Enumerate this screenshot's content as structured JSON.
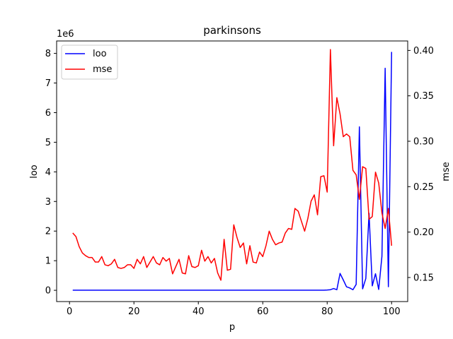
{
  "chart_data": {
    "type": "line",
    "title": "parkinsons",
    "xlabel": "p",
    "ylabel_left": "loo",
    "ylabel_right": "mse",
    "left_axis_offset_label": "1e6",
    "xlim": [
      -4,
      105
    ],
    "ylim_left": [
      -380000,
      8420000
    ],
    "ylim_right": [
      0.1235,
      0.4104
    ],
    "x_ticks": [
      0,
      20,
      40,
      60,
      80,
      100
    ],
    "y_ticks_left": [
      0,
      1,
      2,
      3,
      4,
      5,
      6,
      7,
      8
    ],
    "y_ticks_right": [
      0.15,
      0.2,
      0.25,
      0.3,
      0.35,
      0.4
    ],
    "legend": {
      "position": "top-left",
      "entries": [
        "loo",
        "mse"
      ]
    },
    "series": [
      {
        "name": "loo",
        "axis": "left",
        "color": "#0000ff",
        "x": [
          1,
          2,
          3,
          4,
          5,
          6,
          7,
          8,
          9,
          10,
          11,
          12,
          13,
          14,
          15,
          16,
          17,
          18,
          19,
          20,
          21,
          22,
          23,
          24,
          25,
          26,
          27,
          28,
          29,
          30,
          31,
          32,
          33,
          34,
          35,
          36,
          37,
          38,
          39,
          40,
          41,
          42,
          43,
          44,
          45,
          46,
          47,
          48,
          49,
          50,
          51,
          52,
          53,
          54,
          55,
          56,
          57,
          58,
          59,
          60,
          61,
          62,
          63,
          64,
          65,
          66,
          67,
          68,
          69,
          70,
          71,
          72,
          73,
          74,
          75,
          76,
          77,
          78,
          79,
          80,
          81,
          82,
          83,
          84,
          85,
          86,
          87,
          88,
          89,
          90,
          91,
          92,
          93,
          94,
          95,
          96,
          97,
          98,
          99,
          100
        ],
        "y": [
          5000,
          5000,
          5000,
          5000,
          5000,
          5000,
          5000,
          5000,
          5000,
          5000,
          5000,
          5000,
          5000,
          5000,
          5000,
          5000,
          5000,
          5000,
          5000,
          5000,
          5000,
          5000,
          5000,
          5000,
          5000,
          5000,
          5000,
          5000,
          5000,
          5000,
          5000,
          5000,
          5000,
          5000,
          5000,
          5000,
          5000,
          5000,
          5000,
          5000,
          5000,
          5000,
          5000,
          5000,
          5000,
          5000,
          5000,
          5000,
          5000,
          5000,
          5000,
          5000,
          5000,
          5000,
          5000,
          5000,
          5000,
          5000,
          5000,
          5000,
          5000,
          5000,
          5000,
          5000,
          5000,
          5000,
          5000,
          5000,
          5000,
          5000,
          5000,
          5000,
          5000,
          5000,
          5000,
          5000,
          5000,
          5000,
          5000,
          10000,
          20000,
          60000,
          20000,
          570000,
          350000,
          120000,
          80000,
          20000,
          200000,
          5520000,
          50000,
          400000,
          2600000,
          150000,
          560000,
          30000,
          1150000,
          7500000,
          120000,
          8050000
        ]
      },
      {
        "name": "mse",
        "axis": "right",
        "color": "#ff0000",
        "x": [
          1,
          2,
          3,
          4,
          5,
          6,
          7,
          8,
          9,
          10,
          11,
          12,
          13,
          14,
          15,
          16,
          17,
          18,
          19,
          20,
          21,
          22,
          23,
          24,
          25,
          26,
          27,
          28,
          29,
          30,
          31,
          32,
          33,
          34,
          35,
          36,
          37,
          38,
          39,
          40,
          41,
          42,
          43,
          44,
          45,
          46,
          47,
          48,
          49,
          50,
          51,
          52,
          53,
          54,
          55,
          56,
          57,
          58,
          59,
          60,
          61,
          62,
          63,
          64,
          65,
          66,
          67,
          68,
          69,
          70,
          71,
          72,
          73,
          74,
          75,
          76,
          77,
          78,
          79,
          80,
          81,
          82,
          83,
          84,
          85,
          86,
          87,
          88,
          89,
          90,
          91,
          92,
          93,
          94,
          95,
          96,
          97,
          98,
          99,
          100
        ],
        "y": [
          0.199,
          0.195,
          0.184,
          0.177,
          0.174,
          0.172,
          0.172,
          0.167,
          0.167,
          0.173,
          0.164,
          0.163,
          0.165,
          0.17,
          0.161,
          0.16,
          0.161,
          0.164,
          0.164,
          0.16,
          0.17,
          0.165,
          0.173,
          0.161,
          0.167,
          0.173,
          0.166,
          0.164,
          0.172,
          0.168,
          0.171,
          0.154,
          0.162,
          0.17,
          0.155,
          0.154,
          0.174,
          0.162,
          0.161,
          0.163,
          0.18,
          0.168,
          0.173,
          0.166,
          0.171,
          0.155,
          0.147,
          0.192,
          0.158,
          0.159,
          0.208,
          0.194,
          0.183,
          0.188,
          0.165,
          0.185,
          0.167,
          0.166,
          0.178,
          0.173,
          0.185,
          0.201,
          0.192,
          0.186,
          0.188,
          0.189,
          0.199,
          0.204,
          0.203,
          0.226,
          0.223,
          0.212,
          0.201,
          0.215,
          0.234,
          0.241,
          0.219,
          0.261,
          0.262,
          0.244,
          0.401,
          0.295,
          0.348,
          0.33,
          0.305,
          0.308,
          0.305,
          0.268,
          0.263,
          0.236,
          0.272,
          0.27,
          0.214,
          0.217,
          0.266,
          0.254,
          0.221,
          0.204,
          0.226,
          0.185
        ]
      }
    ]
  }
}
